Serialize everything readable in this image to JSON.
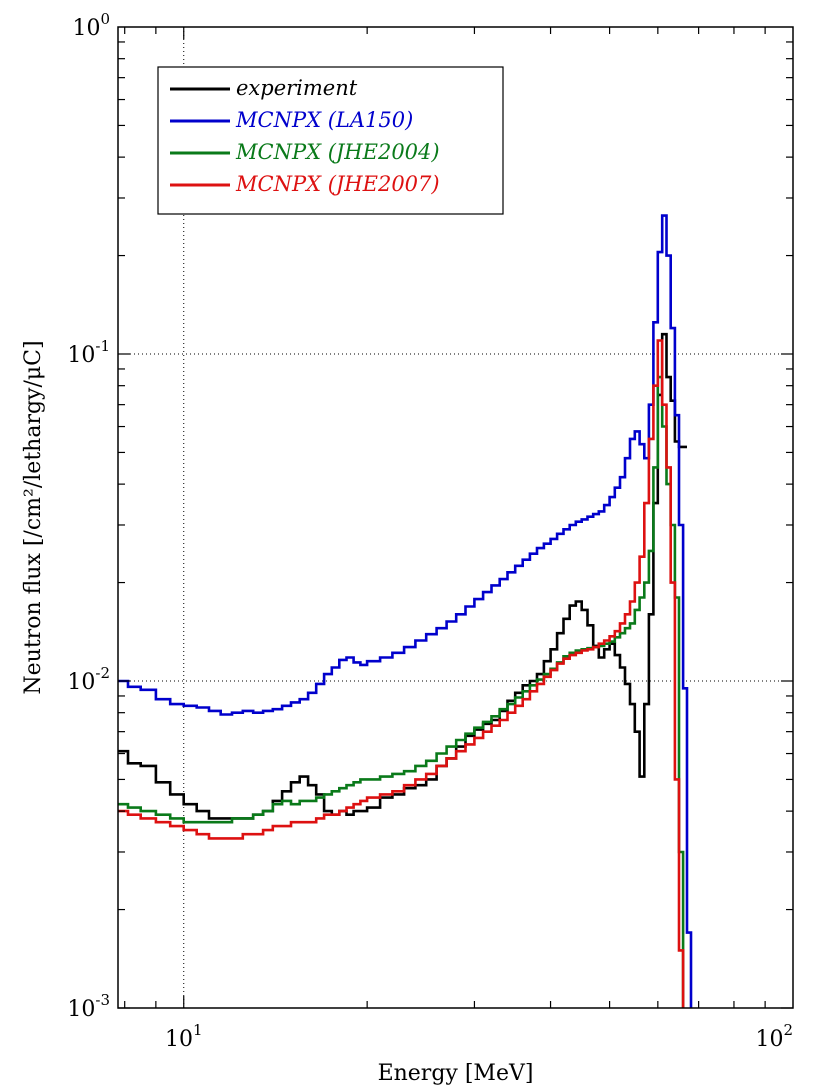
{
  "chart_data": {
    "type": "line",
    "xlabel": "Energy [MeV]",
    "ylabel": "Neutron flux [/cm²/lethargy/μC]",
    "xscale": "log",
    "yscale": "log",
    "xlim": [
      7.8,
      100
    ],
    "ylim": [
      0.001,
      1
    ],
    "x_ticks": [
      {
        "value": 10,
        "base": "10",
        "exp": "1"
      },
      {
        "value": 100,
        "base": "10",
        "exp": "2"
      }
    ],
    "y_ticks": [
      {
        "value": 0.001,
        "base": "10",
        "exp": "-3"
      },
      {
        "value": 0.01,
        "base": "10",
        "exp": "-2"
      },
      {
        "value": 0.1,
        "base": "10",
        "exp": "-1"
      },
      {
        "value": 1,
        "base": "10",
        "exp": "0"
      }
    ],
    "grid": true,
    "legend_position": "top-left",
    "series": [
      {
        "name": "experiment",
        "color": "#000000",
        "x": [
          7.8,
          8.1,
          8.5,
          9.0,
          9.5,
          10.0,
          10.5,
          11.0,
          11.5,
          12.0,
          12.5,
          13.0,
          13.5,
          14.0,
          14.5,
          15.0,
          15.5,
          16.0,
          16.5,
          17.0,
          17.5,
          18.0,
          18.5,
          19.0,
          19.5,
          20.0,
          21.0,
          22.0,
          23.0,
          24.0,
          25.0,
          26.0,
          27.0,
          28.0,
          29.0,
          30.0,
          31.0,
          32.0,
          33.0,
          34.0,
          35.0,
          36.0,
          37.0,
          38.0,
          39.0,
          40.0,
          41.0,
          42.0,
          43.0,
          44.0,
          45.0,
          46.0,
          47.0,
          48.0,
          49.0,
          50.0,
          51.0,
          52.0,
          53.0,
          54.0,
          55.0,
          56.0,
          57.0,
          58.0,
          59.0,
          60.0,
          61.0,
          62.0,
          63.0,
          64.0,
          65.0,
          66.0,
          67.0
        ],
        "y": [
          0.0061,
          0.0056,
          0.0055,
          0.0049,
          0.0045,
          0.0042,
          0.004,
          0.0038,
          0.0038,
          0.0038,
          0.0038,
          0.0039,
          0.004,
          0.0043,
          0.0046,
          0.0049,
          0.0051,
          0.0048,
          0.0045,
          0.004,
          0.0039,
          0.004,
          0.0039,
          0.004,
          0.004,
          0.0041,
          0.0044,
          0.0045,
          0.0047,
          0.0048,
          0.005,
          0.0055,
          0.0058,
          0.0063,
          0.0068,
          0.0071,
          0.0074,
          0.0076,
          0.0081,
          0.0087,
          0.0092,
          0.0097,
          0.01,
          0.0105,
          0.0115,
          0.0125,
          0.014,
          0.0155,
          0.017,
          0.0175,
          0.0165,
          0.0148,
          0.0128,
          0.0118,
          0.0125,
          0.013,
          0.012,
          0.011,
          0.0098,
          0.0085,
          0.007,
          0.0051,
          0.0085,
          0.016,
          0.035,
          0.075,
          0.115,
          0.085,
          0.072,
          0.054,
          0.052,
          0.052,
          0.052
        ]
      },
      {
        "name": "MCNPX (LA150)",
        "color": "#0000cc",
        "x": [
          7.8,
          8.1,
          8.5,
          9.0,
          9.5,
          10.0,
          10.5,
          11.0,
          11.5,
          12.0,
          12.5,
          13.0,
          13.5,
          14.0,
          14.5,
          15.0,
          15.5,
          16.0,
          16.5,
          17.0,
          17.5,
          18.0,
          18.5,
          19.0,
          19.5,
          20.0,
          21.0,
          22.0,
          23.0,
          24.0,
          25.0,
          26.0,
          27.0,
          28.0,
          29.0,
          30.0,
          31.0,
          32.0,
          33.0,
          34.0,
          35.0,
          36.0,
          37.0,
          38.0,
          39.0,
          40.0,
          41.0,
          42.0,
          43.0,
          44.0,
          45.0,
          46.0,
          47.0,
          48.0,
          49.0,
          50.0,
          51.0,
          52.0,
          53.0,
          54.0,
          55.0,
          56.0,
          57.0,
          58.0,
          59.0,
          60.0,
          61.0,
          62.0,
          63.0,
          64.0,
          65.0,
          66.0,
          67.0,
          68.0
        ],
        "y": [
          0.01,
          0.0096,
          0.0094,
          0.0088,
          0.0085,
          0.0084,
          0.0083,
          0.0081,
          0.0079,
          0.008,
          0.0081,
          0.008,
          0.0081,
          0.0082,
          0.0084,
          0.0086,
          0.0088,
          0.0092,
          0.0098,
          0.0105,
          0.011,
          0.0116,
          0.0118,
          0.0114,
          0.0112,
          0.0115,
          0.0118,
          0.0122,
          0.0127,
          0.0133,
          0.0139,
          0.0145,
          0.0152,
          0.016,
          0.0169,
          0.0178,
          0.0187,
          0.0196,
          0.0205,
          0.0215,
          0.0225,
          0.0235,
          0.0245,
          0.0255,
          0.0263,
          0.0272,
          0.0282,
          0.0291,
          0.03,
          0.0307,
          0.0312,
          0.0318,
          0.0324,
          0.033,
          0.0345,
          0.0365,
          0.039,
          0.042,
          0.048,
          0.055,
          0.058,
          0.053,
          0.048,
          0.07,
          0.125,
          0.205,
          0.265,
          0.2,
          0.12,
          0.065,
          0.03,
          0.0095,
          0.0017,
          0.001
        ]
      },
      {
        "name": "MCNPX (JHE2004)",
        "color": "#0a7a1a",
        "x": [
          7.8,
          8.1,
          8.5,
          9.0,
          9.5,
          10.0,
          10.5,
          11.0,
          11.5,
          12.0,
          12.5,
          13.0,
          13.5,
          14.0,
          14.5,
          15.0,
          15.5,
          16.0,
          16.5,
          17.0,
          17.5,
          18.0,
          18.5,
          19.0,
          19.5,
          20.0,
          21.0,
          22.0,
          23.0,
          24.0,
          25.0,
          26.0,
          27.0,
          28.0,
          29.0,
          30.0,
          31.0,
          32.0,
          33.0,
          34.0,
          35.0,
          36.0,
          37.0,
          38.0,
          39.0,
          40.0,
          41.0,
          42.0,
          43.0,
          44.0,
          45.0,
          46.0,
          47.0,
          48.0,
          49.0,
          50.0,
          51.0,
          52.0,
          53.0,
          54.0,
          55.0,
          56.0,
          57.0,
          58.0,
          59.0,
          60.0,
          61.0,
          62.0,
          63.0,
          64.0,
          65.0,
          66.0
        ],
        "y": [
          0.0042,
          0.0041,
          0.004,
          0.0039,
          0.0038,
          0.0037,
          0.0037,
          0.0037,
          0.0037,
          0.0038,
          0.0038,
          0.0039,
          0.004,
          0.0042,
          0.0043,
          0.0042,
          0.0043,
          0.0043,
          0.0044,
          0.0045,
          0.0046,
          0.0047,
          0.0048,
          0.0049,
          0.005,
          0.005,
          0.0051,
          0.0052,
          0.0053,
          0.0055,
          0.0057,
          0.006,
          0.0063,
          0.0066,
          0.0069,
          0.0072,
          0.0075,
          0.0078,
          0.0082,
          0.0085,
          0.0089,
          0.0093,
          0.0097,
          0.0101,
          0.0105,
          0.0109,
          0.0114,
          0.0119,
          0.0122,
          0.0124,
          0.0125,
          0.0126,
          0.0127,
          0.0128,
          0.013,
          0.0132,
          0.0136,
          0.014,
          0.0145,
          0.015,
          0.0165,
          0.018,
          0.02,
          0.025,
          0.045,
          0.085,
          0.06,
          0.04,
          0.03,
          0.018,
          0.003,
          0.001
        ]
      },
      {
        "name": "MCNPX (JHE2007)",
        "color": "#dd1111",
        "x": [
          7.8,
          8.1,
          8.5,
          9.0,
          9.5,
          10.0,
          10.5,
          11.0,
          11.5,
          12.0,
          12.5,
          13.0,
          13.5,
          14.0,
          14.5,
          15.0,
          15.5,
          16.0,
          16.5,
          17.0,
          17.5,
          18.0,
          18.5,
          19.0,
          19.5,
          20.0,
          21.0,
          22.0,
          23.0,
          24.0,
          25.0,
          26.0,
          27.0,
          28.0,
          29.0,
          30.0,
          31.0,
          32.0,
          33.0,
          34.0,
          35.0,
          36.0,
          37.0,
          38.0,
          39.0,
          40.0,
          41.0,
          42.0,
          43.0,
          44.0,
          45.0,
          46.0,
          47.0,
          48.0,
          49.0,
          50.0,
          51.0,
          52.0,
          53.0,
          54.0,
          55.0,
          56.0,
          57.0,
          58.0,
          59.0,
          60.0,
          61.0,
          62.0,
          63.0,
          64.0,
          65.0,
          66.0
        ],
        "y": [
          0.004,
          0.0039,
          0.0038,
          0.0037,
          0.0036,
          0.0035,
          0.0034,
          0.0033,
          0.0033,
          0.0033,
          0.0034,
          0.0034,
          0.0035,
          0.0036,
          0.0036,
          0.0037,
          0.0037,
          0.0037,
          0.0038,
          0.0039,
          0.0039,
          0.004,
          0.0041,
          0.0042,
          0.0043,
          0.0044,
          0.0045,
          0.0046,
          0.0048,
          0.005,
          0.0052,
          0.0055,
          0.0058,
          0.0061,
          0.0064,
          0.0067,
          0.007,
          0.0073,
          0.0076,
          0.008,
          0.0084,
          0.0088,
          0.0093,
          0.0098,
          0.0103,
          0.0108,
          0.0113,
          0.0117,
          0.012,
          0.0122,
          0.0124,
          0.0125,
          0.0127,
          0.013,
          0.0133,
          0.0137,
          0.0142,
          0.015,
          0.016,
          0.0175,
          0.02,
          0.024,
          0.035,
          0.055,
          0.08,
          0.11,
          0.07,
          0.045,
          0.02,
          0.005,
          0.0015,
          0.001
        ]
      }
    ]
  }
}
